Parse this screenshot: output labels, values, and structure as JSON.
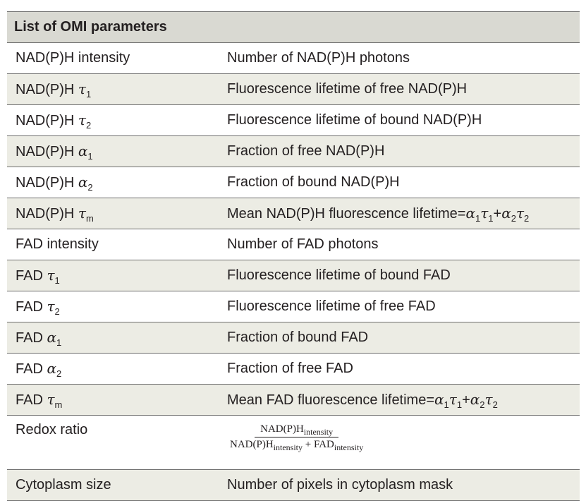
{
  "table": {
    "title": "List of OMI parameters",
    "rows": [
      {
        "label": "NAD(P)H intensity",
        "description": "Number of NAD(P)H photons"
      },
      {
        "label_prefix": "NAD(P)H",
        "sym": "τ",
        "sub": "1",
        "description": "Fluorescence lifetime of free NAD(P)H"
      },
      {
        "label_prefix": "NAD(P)H",
        "sym": "τ",
        "sub": "2",
        "description": "Fluorescence lifetime of bound NAD(P)H"
      },
      {
        "label_prefix": "NAD(P)H",
        "sym": "α",
        "sub": "1",
        "description": "Fraction of free NAD(P)H"
      },
      {
        "label_prefix": "NAD(P)H",
        "sym": "α",
        "sub": "2",
        "description": "Fraction of bound NAD(P)H"
      },
      {
        "label_prefix": "NAD(P)H",
        "sym": "τ",
        "sub": "m",
        "description": "Mean NAD(P)H fluorescence lifetime="
      },
      {
        "label": "FAD intensity",
        "description": "Number of FAD photons"
      },
      {
        "label_prefix": "FAD",
        "sym": "τ",
        "sub": "1",
        "description": "Fluorescence lifetime of bound FAD"
      },
      {
        "label_prefix": "FAD",
        "sym": "τ",
        "sub": "2",
        "description": "Fluorescence lifetime of free FAD"
      },
      {
        "label_prefix": "FAD",
        "sym": "α",
        "sub": "1",
        "description": "Fraction of bound FAD"
      },
      {
        "label_prefix": "FAD",
        "sym": "α",
        "sub": "2",
        "description": "Fraction of free FAD"
      },
      {
        "label_prefix": "FAD",
        "sym": "τ",
        "sub": "m",
        "description": "Mean FAD fluorescence lifetime="
      },
      {
        "label": "Redox ratio"
      },
      {
        "label": "Cytoplasm size",
        "description": "Number of pixels in cytoplasm mask"
      }
    ],
    "formula": {
      "a": "α",
      "t": "τ",
      "s1": "1",
      "s2": "2",
      "plus": "+"
    },
    "redox": {
      "numerator_base": "NAD(P)H",
      "numerator_sub": "intensity",
      "denominator_base1": "NAD(P)H",
      "denominator_sub1": "intensity",
      "plus": "+",
      "denominator_base2": "FAD",
      "denominator_sub2": "intensity"
    }
  },
  "colors": {
    "header_bg": "#d9d9d2",
    "shaded_row_bg": "#ecece4",
    "rule": "#6d6d6d",
    "text": "#231f20"
  }
}
